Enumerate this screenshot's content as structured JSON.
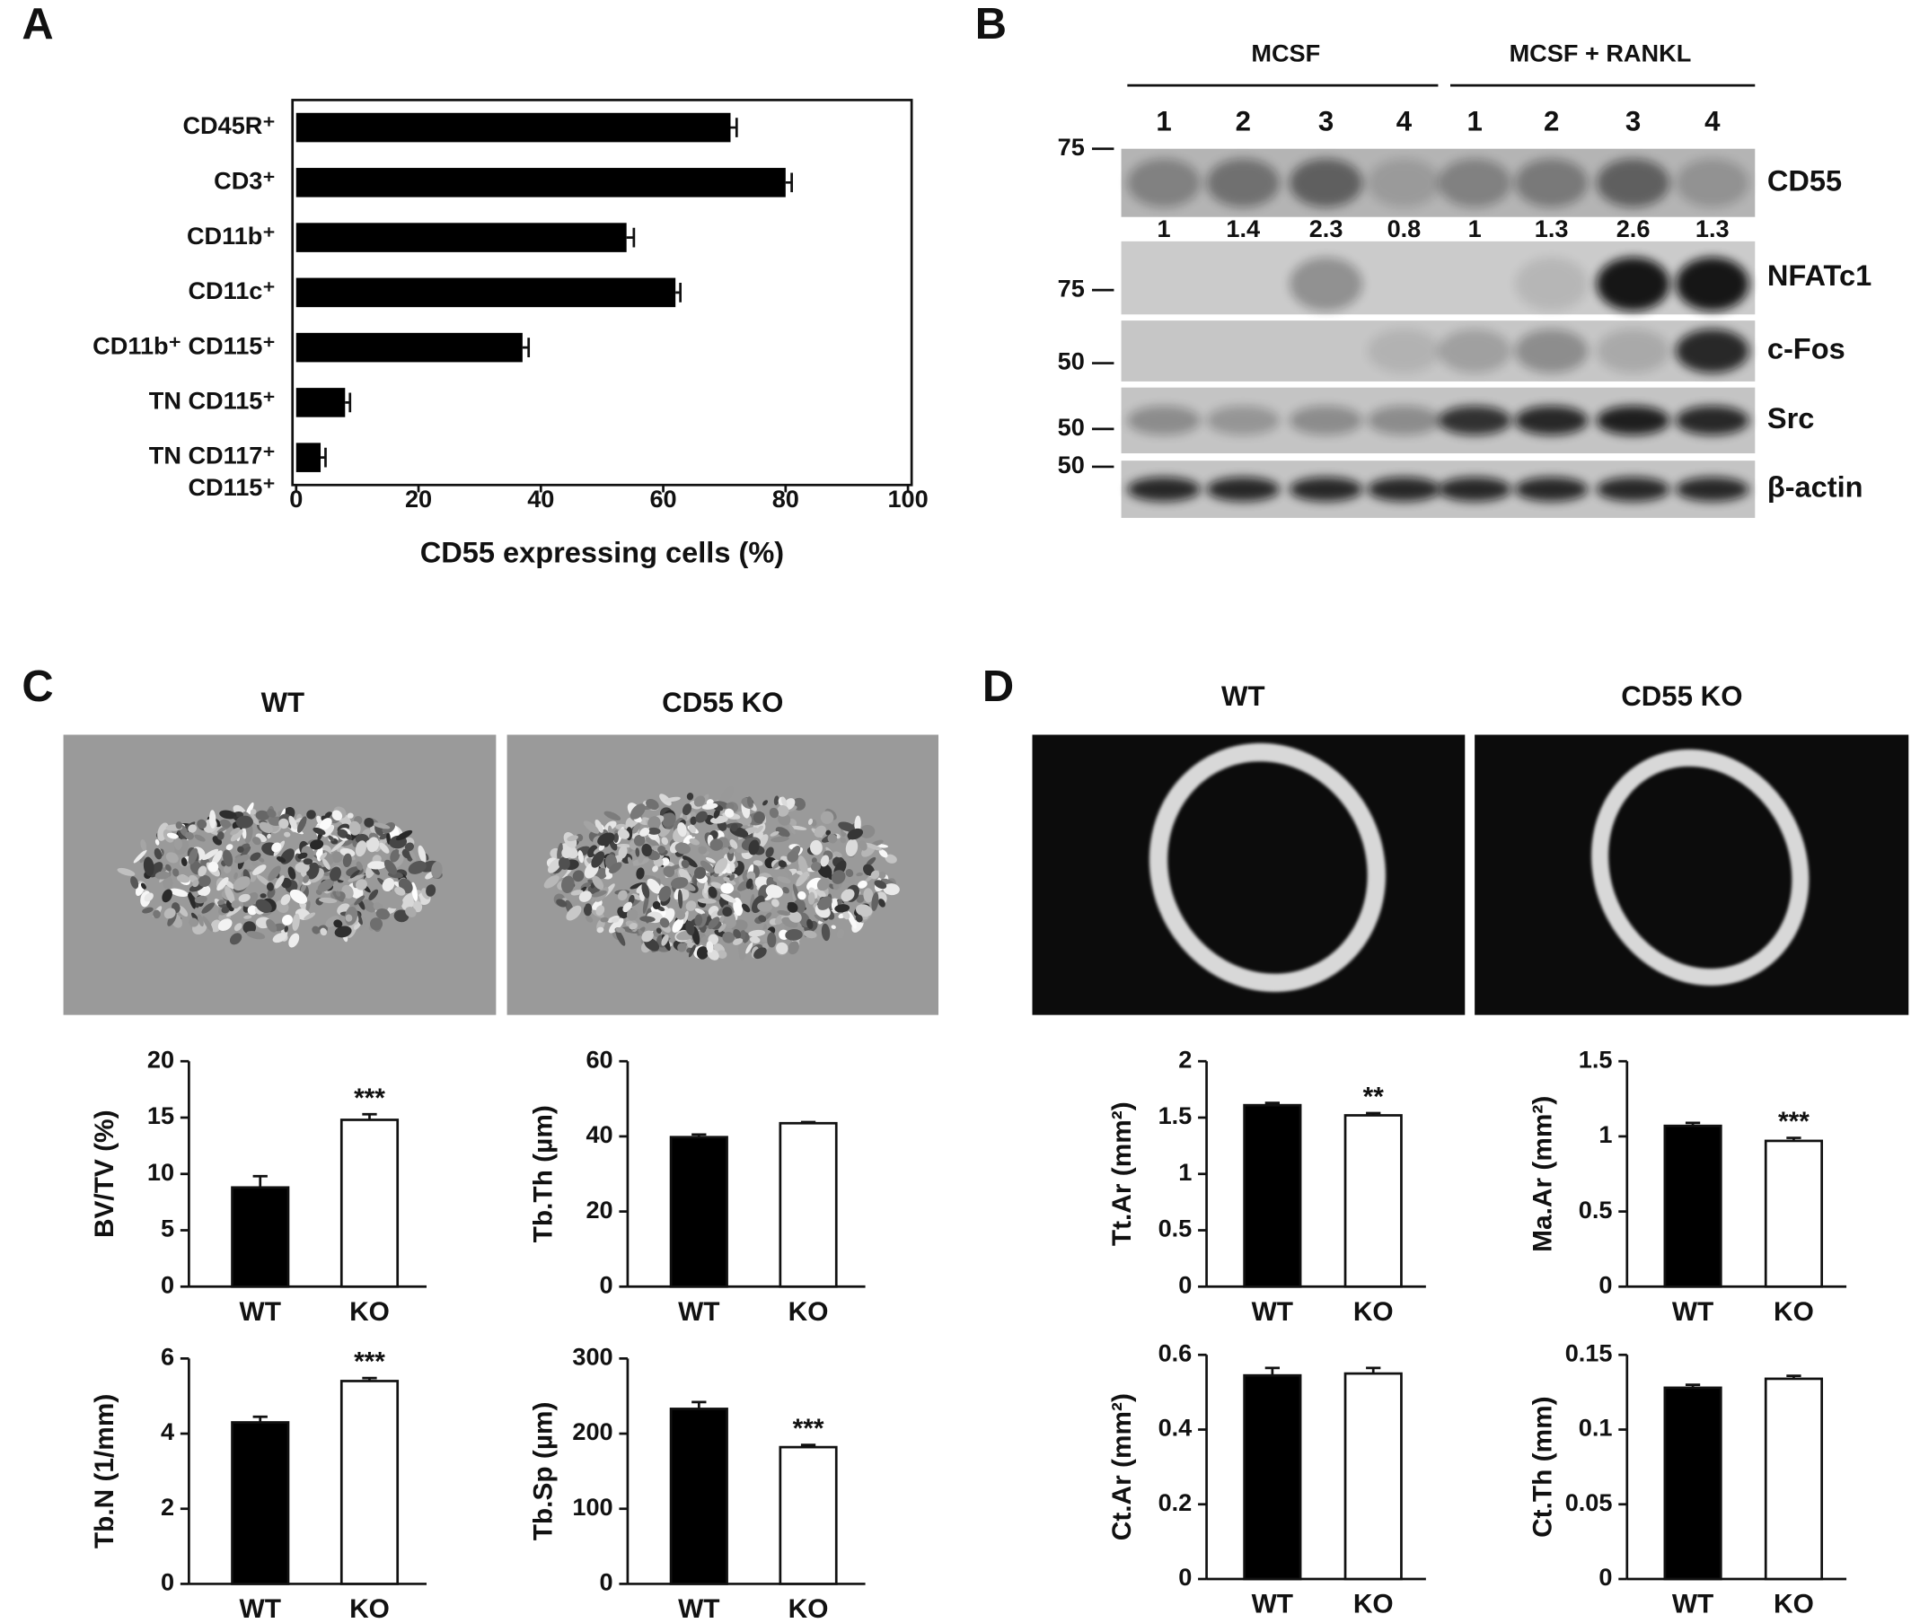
{
  "panel_labels": [
    "A",
    "B",
    "C",
    "D"
  ],
  "blot": {
    "groups": [
      "MCSF",
      "MCSF + RANKL"
    ],
    "lanes": [
      1,
      2,
      3,
      4,
      1,
      2,
      3,
      4
    ],
    "rows": [
      {
        "label": "CD55",
        "markers": [
          75
        ]
      },
      {
        "label": "NFATc1",
        "markers": [
          75
        ]
      },
      {
        "label": "c-Fos",
        "markers": [
          50
        ]
      },
      {
        "label": "Src",
        "markers": [
          50
        ]
      },
      {
        "label": "β-actin",
        "markers": [
          50
        ]
      }
    ],
    "quantification": [
      1,
      1.4,
      2.3,
      0.8,
      1,
      1.3,
      2.6,
      1.3
    ]
  },
  "micro_ct": {
    "C": {
      "titles": [
        "WT",
        "CD55 KO"
      ]
    },
    "D": {
      "titles": [
        "WT",
        "CD55 KO"
      ]
    }
  },
  "chart_data": [
    {
      "type": "hbar",
      "xlabel": "CD55 expressing cells (%)",
      "categories": [
        "CD45R⁺",
        "CD3⁺",
        "CD11b⁺",
        "CD11c⁺",
        "CD11b⁺ CD115⁺",
        "TN CD115⁺",
        "TN CD117⁺\nCD115⁺"
      ],
      "values": [
        71,
        80,
        54,
        62,
        37,
        8,
        4
      ],
      "errors": [
        1,
        1,
        1.2,
        0.8,
        1,
        0.8,
        0.8
      ],
      "color": "#000000",
      "xlim": [
        0,
        100
      ],
      "xticks": [
        0,
        20,
        40,
        60,
        80,
        100
      ]
    },
    {
      "type": "bar",
      "ylabel": "BV/TV (%)",
      "categories": [
        "WT",
        "KO"
      ],
      "values": [
        8.8,
        14.8
      ],
      "errors": [
        1.0,
        0.5
      ],
      "colors": [
        "#000000",
        "#ffffff"
      ],
      "significance": [
        null,
        "***"
      ],
      "ylim": [
        0,
        20
      ],
      "yticks": [
        0,
        5,
        10,
        15,
        20
      ]
    },
    {
      "type": "bar",
      "ylabel": "Tb.Th (µm)",
      "categories": [
        "WT",
        "KO"
      ],
      "values": [
        39.8,
        43.5
      ],
      "errors": [
        0.7,
        0.3
      ],
      "colors": [
        "#000000",
        "#ffffff"
      ],
      "ylim": [
        0,
        60
      ],
      "yticks": [
        0,
        20,
        40,
        60
      ]
    },
    {
      "type": "bar",
      "ylabel": "Tb.N (1/mm)",
      "categories": [
        "WT",
        "KO"
      ],
      "values": [
        4.3,
        5.4
      ],
      "errors": [
        0.15,
        0.08
      ],
      "colors": [
        "#000000",
        "#ffffff"
      ],
      "significance": [
        null,
        "***"
      ],
      "ylim": [
        0,
        6
      ],
      "yticks": [
        0,
        2,
        4,
        6
      ]
    },
    {
      "type": "bar",
      "ylabel": "Tb.Sp (µm)",
      "categories": [
        "WT",
        "KO"
      ],
      "values": [
        233,
        182
      ],
      "errors": [
        9,
        3
      ],
      "colors": [
        "#000000",
        "#ffffff"
      ],
      "significance": [
        null,
        "***"
      ],
      "ylim": [
        0,
        300
      ],
      "yticks": [
        0,
        100,
        200,
        300
      ]
    },
    {
      "type": "bar",
      "ylabel": "Tt.Ar (mm²)",
      "categories": [
        "WT",
        "KO"
      ],
      "values": [
        1.61,
        1.52
      ],
      "errors": [
        0.02,
        0.02
      ],
      "colors": [
        "#000000",
        "#ffffff"
      ],
      "significance": [
        null,
        "**"
      ],
      "ylim": [
        0,
        2
      ],
      "yticks": [
        0,
        0.5,
        1,
        1.5,
        2
      ]
    },
    {
      "type": "bar",
      "ylabel": "Ma.Ar (mm²)",
      "categories": [
        "WT",
        "KO"
      ],
      "values": [
        1.07,
        0.97
      ],
      "errors": [
        0.02,
        0.02
      ],
      "colors": [
        "#000000",
        "#ffffff"
      ],
      "significance": [
        null,
        "***"
      ],
      "ylim": [
        0,
        1.5
      ],
      "yticks": [
        0,
        0.5,
        1,
        1.5
      ]
    },
    {
      "type": "bar",
      "ylabel": "Ct.Ar (mm²)",
      "categories": [
        "WT",
        "KO"
      ],
      "values": [
        0.545,
        0.55
      ],
      "errors": [
        0.02,
        0.015
      ],
      "colors": [
        "#000000",
        "#ffffff"
      ],
      "ylim": [
        0,
        0.6
      ],
      "yticks": [
        0,
        0.2,
        0.4,
        0.6
      ]
    },
    {
      "type": "bar",
      "ylabel": "Ct.Th (mm)",
      "categories": [
        "WT",
        "KO"
      ],
      "values": [
        0.128,
        0.134
      ],
      "errors": [
        0.002,
        0.002
      ],
      "colors": [
        "#000000",
        "#ffffff"
      ],
      "ylim": [
        0,
        0.15
      ],
      "yticks": [
        0,
        0.05,
        0.1,
        0.15
      ]
    }
  ]
}
